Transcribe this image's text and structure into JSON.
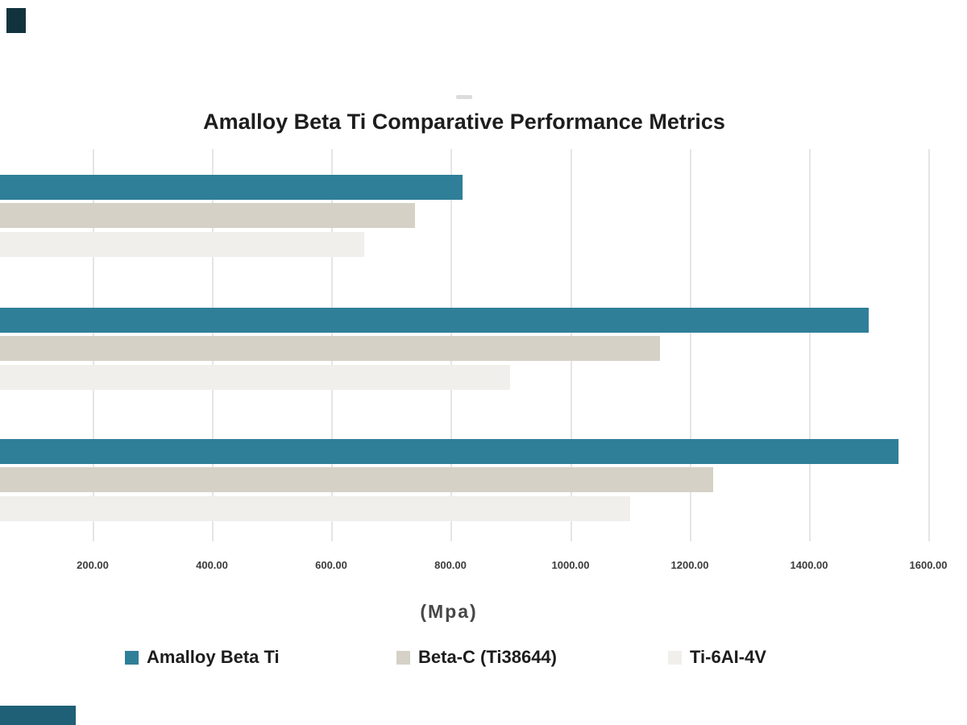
{
  "page": {
    "background": "#ffffff"
  },
  "title": "Amalloy Beta Ti Comparative Performance Metrics",
  "axis_label": "(Mpa)",
  "x_ticks": [
    {
      "value": 200,
      "label": "200.00"
    },
    {
      "value": 400,
      "label": "400.00"
    },
    {
      "value": 600,
      "label": "600.00"
    },
    {
      "value": 800,
      "label": "800.00"
    },
    {
      "value": 1000,
      "label": "1000.00"
    },
    {
      "value": 1200,
      "label": "1200.00"
    },
    {
      "value": 1400,
      "label": "1400.00"
    },
    {
      "value": 1600,
      "label": "1600.00"
    }
  ],
  "legend": [
    {
      "label": "Amalloy Beta Ti",
      "color": "#2f7f98"
    },
    {
      "label": "Beta-C (Ti38644)",
      "color": "#d5d1c6"
    },
    {
      "label": "Ti-6AI-4V",
      "color": "#f0efec"
    }
  ],
  "colors": {
    "series_teal": "#2f7f98",
    "series_beige": "#d5d1c6",
    "series_light": "#f0efec",
    "gridline": "#e5e5e5",
    "title_text": "#1d1d1d",
    "tick_text": "#3c3c3c",
    "corner_fragment_dark": "#12333e",
    "corner_fragment_teal": "#1f6077"
  },
  "chart_data": {
    "type": "bar",
    "orientation": "horizontal",
    "title": "Amalloy Beta Ti Comparative Performance Metrics",
    "xlabel": "(Mpa)",
    "categories": [
      "",
      "",
      ""
    ],
    "series": [
      {
        "name": "Amalloy Beta Ti",
        "color": "#2f7f98",
        "values": [
          820,
          1500,
          1550
        ]
      },
      {
        "name": "Beta-C (Ti38644)",
        "color": "#d5d1c6",
        "values": [
          740,
          1150,
          1240
        ]
      },
      {
        "name": "Ti-6AI-4V",
        "color": "#f0efec",
        "values": [
          655,
          900,
          1100
        ]
      }
    ],
    "tick_values": [
      200,
      400,
      600,
      800,
      1000,
      1200,
      1400,
      1600
    ],
    "xlim_visible": [
      0,
      1600
    ],
    "grid": "vertical",
    "legend_position": "bottom",
    "axis_cropped_left": true,
    "category_labels_visible": false
  }
}
